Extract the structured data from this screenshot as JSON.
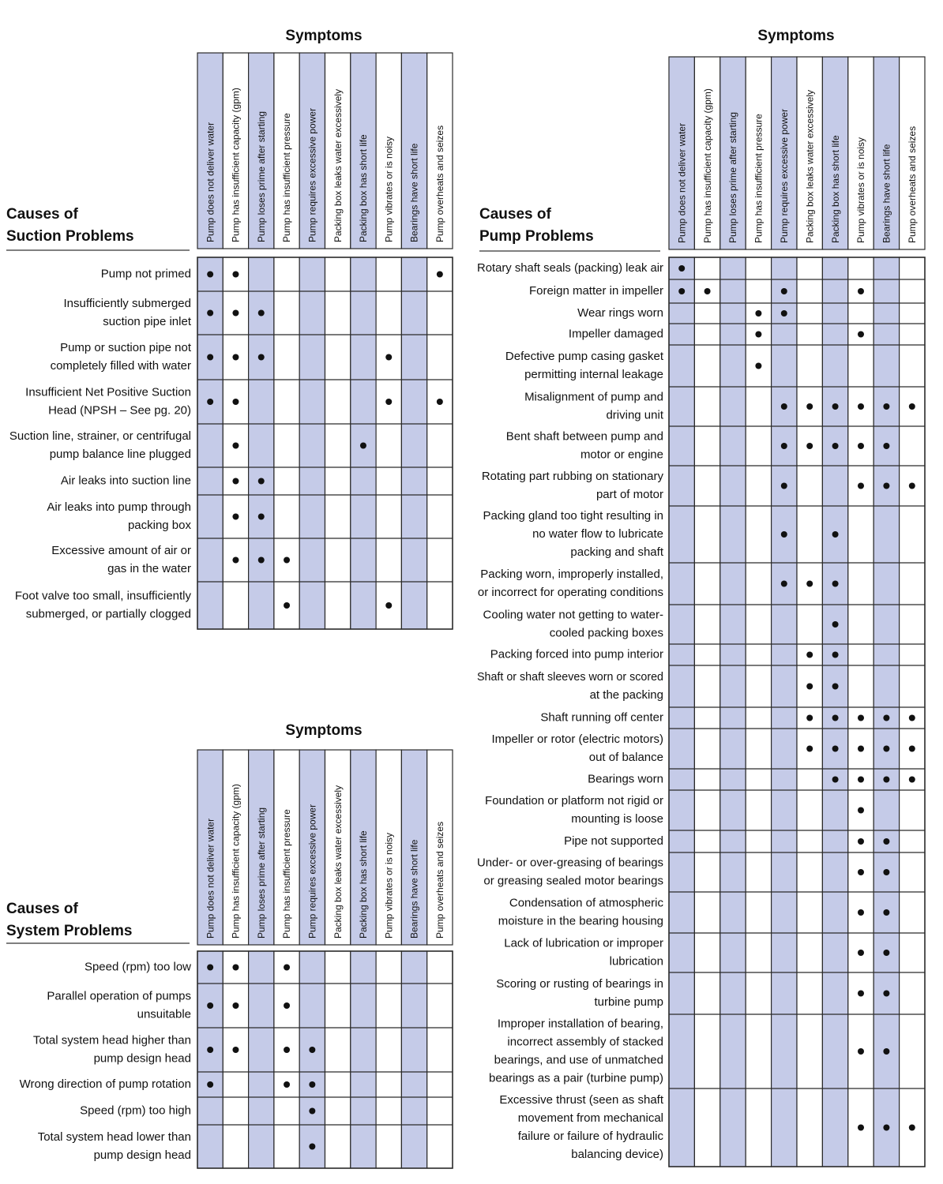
{
  "tables": [
    {
      "heading": "Symptoms",
      "title": [
        "Causes of",
        "Suction Problems"
      ],
      "symptoms": [
        "Pump does not deliver water",
        "Pump has insufficient capacity (gpm)",
        "Pump loses prime after starting",
        "Pump has insufficient pressure",
        "Pump requires excessive power",
        "Packing box leaks water excessively",
        "Packing box has short life",
        "Pump vibrates or is noisy",
        "Bearings have short life",
        "Pump overheats and seizes"
      ],
      "rows": [
        {
          "cause": [
            "Pump not primed"
          ],
          "dots": [
            0,
            1,
            9
          ]
        },
        {
          "cause": [
            "Insufficiently submerged",
            "suction pipe inlet"
          ],
          "dots": [
            0,
            1,
            2
          ]
        },
        {
          "cause": [
            "Pump or suction pipe not",
            "completely filled with water"
          ],
          "dots": [
            0,
            1,
            2,
            7
          ]
        },
        {
          "cause": [
            "Insufficient Net Positive Suction",
            "Head (NPSH – See pg. 20)"
          ],
          "dots": [
            0,
            1,
            7,
            9
          ]
        },
        {
          "cause": [
            "Suction line, strainer, or centrifugal",
            "pump balance line plugged"
          ],
          "dots": [
            1,
            6
          ]
        },
        {
          "cause": [
            "Air leaks into suction line"
          ],
          "dots": [
            1,
            2
          ]
        },
        {
          "cause": [
            "Air leaks into pump through",
            "packing box"
          ],
          "dots": [
            1,
            2
          ]
        },
        {
          "cause": [
            "Excessive amount of air or",
            "gas in the water"
          ],
          "dots": [
            1,
            2,
            3
          ]
        },
        {
          "cause": [
            "Foot valve too small, insufficiently",
            "submerged, or partially clogged"
          ],
          "dots": [
            3,
            7
          ]
        }
      ]
    },
    {
      "heading": "Symptoms",
      "title": [
        "Causes of",
        "System Problems"
      ],
      "symptoms": [
        "Pump does not deliver water",
        "Pump has insufficient capacity (gpm)",
        "Pump loses prime after starting",
        "Pump has insufficient pressure",
        "Pump requires excessive power",
        "Packing box leaks water excessively",
        "Packing box has short life",
        "Pump vibrates or is noisy",
        "Bearings have short life",
        "Pump overheats and seizes"
      ],
      "rows": [
        {
          "cause": [
            "Speed (rpm) too low"
          ],
          "dots": [
            0,
            1,
            3
          ]
        },
        {
          "cause": [
            "Parallel operation of pumps",
            "unsuitable"
          ],
          "dots": [
            0,
            1,
            3
          ]
        },
        {
          "cause": [
            "Total system head higher than",
            "pump design head"
          ],
          "dots": [
            0,
            1,
            3,
            4
          ]
        },
        {
          "cause": [
            "Wrong direction of pump rotation"
          ],
          "dots": [
            0,
            3,
            4
          ]
        },
        {
          "cause": [
            "Speed (rpm) too high"
          ],
          "dots": [
            4
          ]
        },
        {
          "cause": [
            "Total system head lower than",
            "pump design head"
          ],
          "dots": [
            4
          ]
        }
      ]
    },
    {
      "heading": "Symptoms",
      "title": [
        "Causes of",
        "Pump Problems"
      ],
      "symptoms": [
        "Pump does not deliver water",
        "Pump has insufficient capacity (gpm)",
        "Pump loses prime after starting",
        "Pump has insufficient pressure",
        "Pump requires excessive power",
        "Packing box leaks water excessively",
        "Packing box has short life",
        "Pump vibrates or is noisy",
        "Bearings have short life",
        "Pump overheats and seizes"
      ],
      "rows": [
        {
          "cause": [
            "Rotary shaft seals (packing) leak air"
          ],
          "dots": [
            0
          ]
        },
        {
          "cause": [
            "Foreign matter in impeller"
          ],
          "dots": [
            0,
            1,
            4,
            7
          ]
        },
        {
          "cause": [
            "Wear rings worn"
          ],
          "dots": [
            3,
            4
          ]
        },
        {
          "cause": [
            "Impeller damaged"
          ],
          "dots": [
            3,
            7
          ]
        },
        {
          "cause": [
            "Defective pump casing gasket",
            "permitting internal leakage"
          ],
          "dots": [
            3
          ]
        },
        {
          "cause": [
            "Misalignment of pump and",
            "driving unit"
          ],
          "dots": [
            4,
            5,
            6,
            7,
            8,
            9
          ]
        },
        {
          "cause": [
            "Bent shaft between pump and",
            "motor or engine"
          ],
          "dots": [
            4,
            5,
            6,
            7,
            8
          ]
        },
        {
          "cause": [
            "Rotating part rubbing on stationary",
            "part of motor"
          ],
          "dots": [
            4,
            7,
            8,
            9
          ]
        },
        {
          "cause": [
            "Packing gland too tight resulting in",
            "no water flow to lubricate",
            "packing and shaft"
          ],
          "dots": [
            4,
            6
          ]
        },
        {
          "cause": [
            "Packing worn, improperly installed,",
            "or incorrect for operating conditions"
          ],
          "dots": [
            4,
            5,
            6
          ]
        },
        {
          "cause": [
            "Cooling water not getting to water-",
            "cooled packing boxes"
          ],
          "dots": [
            6
          ]
        },
        {
          "cause": [
            "Packing forced into pump interior"
          ],
          "dots": [
            5,
            6
          ]
        },
        {
          "cause": [
            "Shaft or shaft sleeves worn or scored",
            "at the packing"
          ],
          "dots": [
            5,
            6
          ]
        },
        {
          "cause": [
            "Shaft running off center"
          ],
          "dots": [
            5,
            6,
            7,
            8,
            9
          ]
        },
        {
          "cause": [
            "Impeller or rotor (electric motors)",
            "out of balance"
          ],
          "dots": [
            5,
            6,
            7,
            8,
            9
          ]
        },
        {
          "cause": [
            "Bearings worn"
          ],
          "dots": [
            6,
            7,
            8,
            9
          ]
        },
        {
          "cause": [
            "Foundation or platform not rigid or",
            "mounting is loose"
          ],
          "dots": [
            7
          ]
        },
        {
          "cause": [
            "Pipe not supported"
          ],
          "dots": [
            7,
            8
          ]
        },
        {
          "cause": [
            "Under- or over-greasing of bearings",
            "or greasing sealed motor bearings"
          ],
          "dots": [
            7,
            8
          ]
        },
        {
          "cause": [
            "Condensation of atmospheric",
            "moisture in the bearing housing"
          ],
          "dots": [
            7,
            8
          ]
        },
        {
          "cause": [
            "Lack of lubrication or improper",
            "lubrication"
          ],
          "dots": [
            7,
            8
          ]
        },
        {
          "cause": [
            "Scoring or rusting of bearings in",
            "turbine pump"
          ],
          "dots": [
            7,
            8
          ]
        },
        {
          "cause": [
            "Improper installation of bearing,",
            "incorrect assembly of stacked",
            "bearings, and use of unmatched",
            "bearings as a pair (turbine pump)"
          ],
          "dots": [
            7,
            8
          ]
        },
        {
          "cause": [
            "Excessive thrust (seen as shaft",
            "movement from mechanical",
            "failure or failure of hydraulic",
            "balancing device)"
          ],
          "dots": [
            7,
            8,
            9
          ]
        }
      ]
    }
  ]
}
